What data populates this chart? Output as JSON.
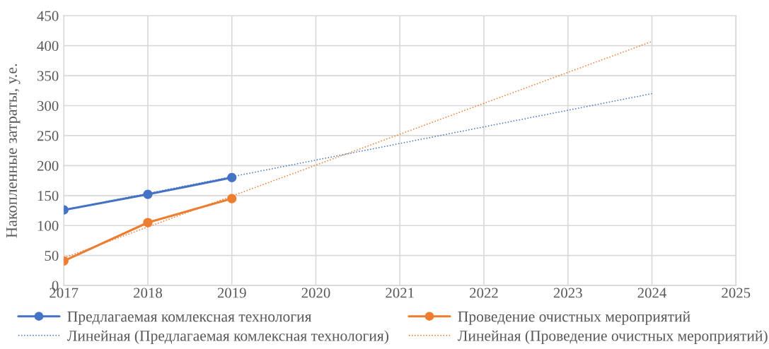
{
  "chart_data": {
    "type": "line",
    "ylabel": "Накопленные затраты, у.е.",
    "xlim": [
      2017,
      2025
    ],
    "xticks": [
      2017,
      2018,
      2019,
      2020,
      2021,
      2022,
      2023,
      2024,
      2025
    ],
    "ylim": [
      0,
      450
    ],
    "yticks": [
      0,
      50,
      100,
      150,
      200,
      250,
      300,
      350,
      400,
      450
    ],
    "grid": true,
    "legend": "bottom",
    "marker": "circle",
    "line_style": "solid",
    "series": [
      {
        "name": "Предлагаемая комлексная технология",
        "color": "#4472c4",
        "x": [
          2017,
          2018,
          2019
        ],
        "values": [
          126,
          152,
          180
        ]
      },
      {
        "name": "Проведение очистных мероприятий",
        "color": "#ed7d31",
        "x": [
          2017,
          2018,
          2019
        ],
        "values": [
          41,
          105,
          145
        ]
      },
      {
        "name": "Линейная (Предлагаемая комлексная технология)",
        "color": "#4472c4",
        "x": [
          2017,
          2024
        ],
        "values": [
          126,
          320
        ],
        "line_style": "dotted",
        "marker": "none"
      },
      {
        "name": "Линейная (Проведение очистных мероприятий)",
        "color": "#ed7d31",
        "x": [
          2017,
          2024
        ],
        "values": [
          46,
          407
        ],
        "line_style": "dotted",
        "marker": "none"
      }
    ]
  }
}
